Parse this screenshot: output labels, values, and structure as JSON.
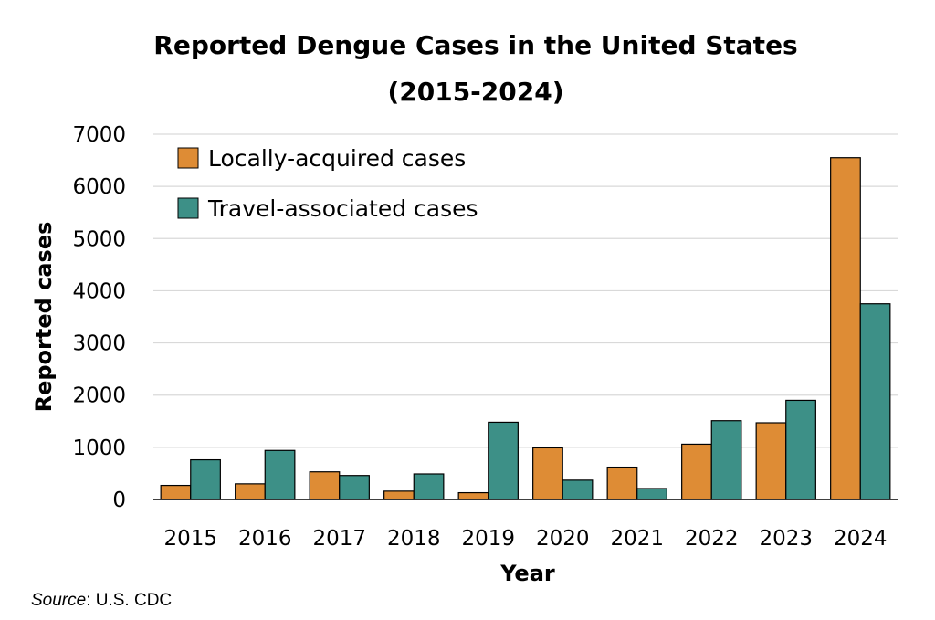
{
  "chart_data": {
    "type": "bar",
    "title": "Reported Dengue Cases in the United States",
    "subtitle": "(2015-2024)",
    "xlabel": "Year",
    "ylabel": "Reported cases",
    "ylim": [
      0,
      7000
    ],
    "yticks": [
      0,
      1000,
      2000,
      3000,
      4000,
      5000,
      6000,
      7000
    ],
    "grid": true,
    "legend_position": "top-left",
    "categories": [
      "2015",
      "2016",
      "2017",
      "2018",
      "2019",
      "2020",
      "2021",
      "2022",
      "2023",
      "2024"
    ],
    "series": [
      {
        "name": "Locally-acquired cases",
        "color": "#DE8C35",
        "values": [
          270,
          300,
          530,
          160,
          130,
          990,
          620,
          1060,
          1470,
          6550
        ]
      },
      {
        "name": "Travel-associated cases",
        "color": "#3D9087",
        "values": [
          760,
          940,
          460,
          490,
          1480,
          370,
          210,
          1510,
          1900,
          3750
        ]
      }
    ]
  },
  "source": {
    "label": "Source",
    "separator": ":",
    "text": " U.S. CDC"
  }
}
